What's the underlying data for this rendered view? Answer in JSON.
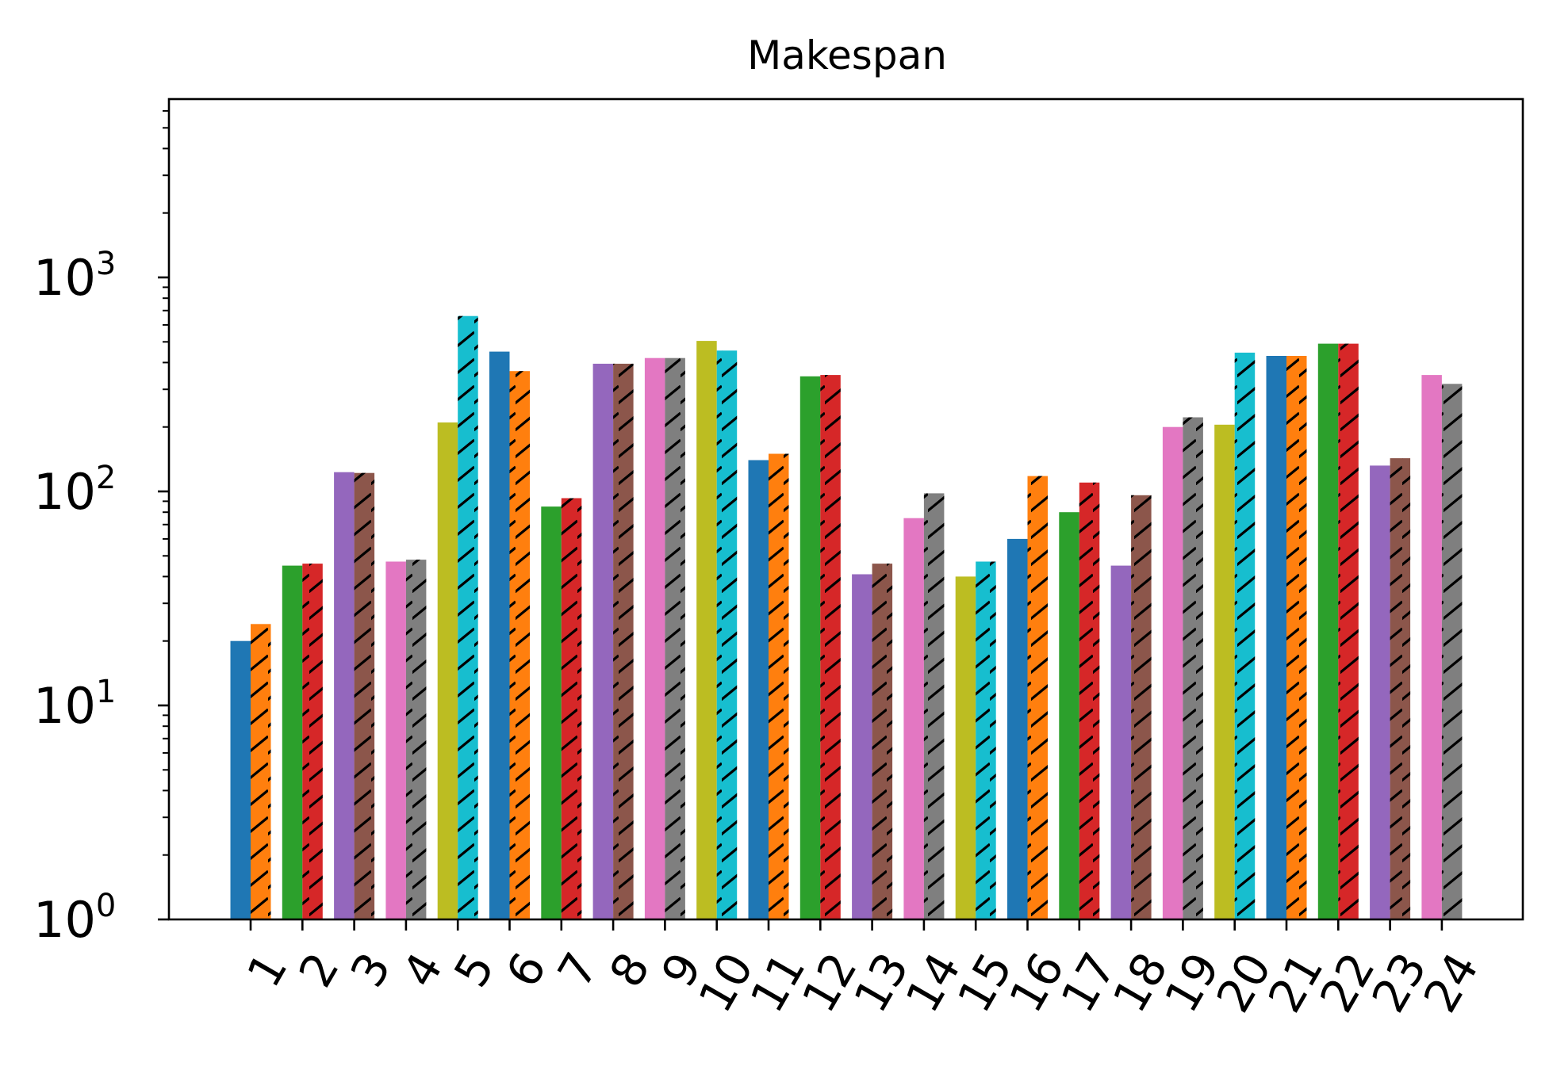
{
  "chart_data": {
    "type": "bar",
    "title": "Makespan",
    "xlabel": "",
    "ylabel": "",
    "yscale": "log",
    "ylim": [
      1,
      7000
    ],
    "grid": false,
    "legend": "none",
    "categories": [
      "1",
      "2",
      "3",
      "4",
      "5",
      "6",
      "7",
      "8",
      "9",
      "10",
      "11",
      "12",
      "13",
      "14",
      "15",
      "16",
      "17",
      "18",
      "19",
      "20",
      "21",
      "22",
      "23",
      "24"
    ],
    "y_tick_labels": [
      {
        "base": "10",
        "exp": "0",
        "value": 1
      },
      {
        "base": "10",
        "exp": "1",
        "value": 10
      },
      {
        "base": "10",
        "exp": "2",
        "value": 100
      },
      {
        "base": "10",
        "exp": "3",
        "value": 1000
      }
    ],
    "series": [
      {
        "hatched": false,
        "values": [
          20,
          45,
          123,
          47,
          210,
          450,
          85,
          395,
          420,
          505,
          140,
          345,
          41,
          75,
          40,
          60,
          80,
          45,
          200,
          205,
          430,
          490,
          132,
          350
        ],
        "colors": [
          "#1f77b4",
          "#2ca02c",
          "#9467bd",
          "#e377c2",
          "#bcbd22",
          "#1f77b4",
          "#2ca02c",
          "#9467bd",
          "#e377c2",
          "#bcbd22",
          "#1f77b4",
          "#2ca02c",
          "#9467bd",
          "#e377c2",
          "#bcbd22",
          "#1f77b4",
          "#2ca02c",
          "#9467bd",
          "#e377c2",
          "#bcbd22",
          "#1f77b4",
          "#2ca02c",
          "#9467bd",
          "#e377c2"
        ]
      },
      {
        "hatched": true,
        "values": [
          24,
          46,
          122,
          48,
          660,
          365,
          93,
          395,
          420,
          455,
          150,
          350,
          46,
          98,
          47,
          118,
          110,
          96,
          222,
          445,
          430,
          490,
          143,
          318
        ],
        "colors": [
          "#ff7f0e",
          "#d62728",
          "#8c564b",
          "#7f7f7f",
          "#17becf",
          "#ff7f0e",
          "#d62728",
          "#8c564b",
          "#7f7f7f",
          "#17becf",
          "#ff7f0e",
          "#d62728",
          "#8c564b",
          "#7f7f7f",
          "#17becf",
          "#ff7f0e",
          "#d62728",
          "#8c564b",
          "#7f7f7f",
          "#17becf",
          "#ff7f0e",
          "#d62728",
          "#8c564b",
          "#7f7f7f"
        ]
      }
    ]
  }
}
